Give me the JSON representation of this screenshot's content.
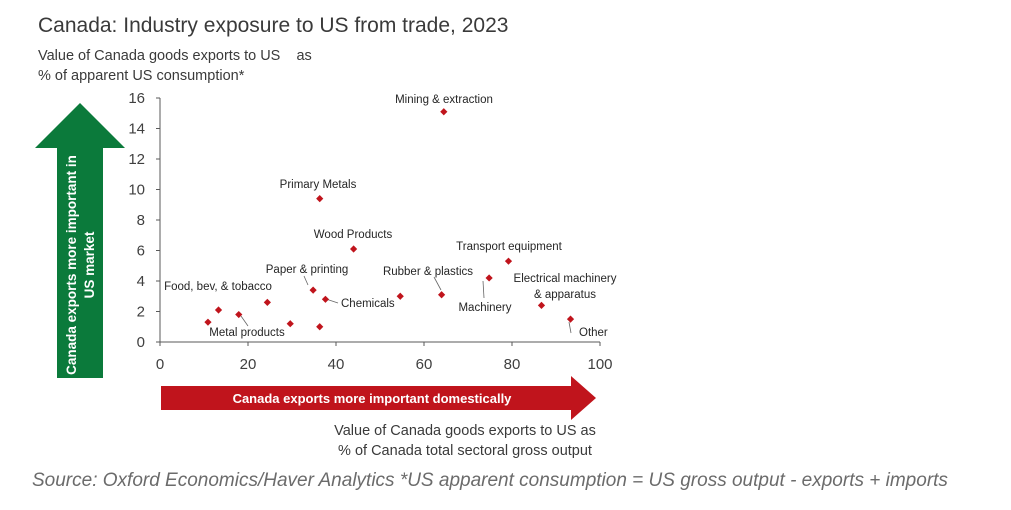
{
  "title": "Canada: Industry exposure to US from trade, 2023",
  "ylabel_line1": "Value of Canada goods exports to US    as",
  "ylabel_line2": "% of apparent US consumption*",
  "xlabel_line1": "Value of Canada goods exports to US as",
  "xlabel_line2": "% of Canada total sectoral gross output",
  "source": "Source: Oxford Economics/Haver Analytics *US apparent consumption = US gross output - exports + imports",
  "arrows": {
    "vertical_text_line1": "Canada exports more important in",
    "vertical_text_line2": "US market",
    "horizontal_text": "Canada exports more important domestically",
    "vertical_color": "#0b7a3b",
    "horizontal_color": "#c0141c"
  },
  "marker_color": "#c0141c",
  "chart_data": {
    "type": "scatter",
    "xlim": [
      0,
      100
    ],
    "ylim": [
      0,
      16
    ],
    "xticks": [
      0,
      20,
      40,
      60,
      80,
      100
    ],
    "yticks": [
      0,
      2,
      4,
      6,
      8,
      10,
      12,
      14,
      16
    ],
    "grid": false,
    "points": [
      {
        "label": "Mining & extraction",
        "x": 64.5,
        "y": 15.1
      },
      {
        "label": "Primary Metals",
        "x": 36.3,
        "y": 9.4
      },
      {
        "label": "Wood Products",
        "x": 44.0,
        "y": 6.1
      },
      {
        "label": "Transport equipment",
        "x": 79.2,
        "y": 5.3
      },
      {
        "label": "Paper & printing",
        "x": 34.8,
        "y": 3.4
      },
      {
        "label": "Rubber & plastics",
        "x": 64.0,
        "y": 3.1
      },
      {
        "label": "Food, bev, & tobacco",
        "x": 24.4,
        "y": 2.6
      },
      {
        "label": "Chemicals",
        "x": 37.6,
        "y": 2.8
      },
      {
        "label": "Machinery",
        "x": 74.8,
        "y": 4.2
      },
      {
        "label": "Electrical machinery & apparatus",
        "x": 86.7,
        "y": 2.4
      },
      {
        "label": "Metal products",
        "x": 17.9,
        "y": 1.8
      },
      {
        "label": "Other",
        "x": 93.3,
        "y": 1.5
      },
      {
        "label": "",
        "x": 54.6,
        "y": 3.0
      },
      {
        "label": "",
        "x": 13.3,
        "y": 2.1
      },
      {
        "label": "",
        "x": 10.9,
        "y": 1.3
      },
      {
        "label": "",
        "x": 29.6,
        "y": 1.2
      },
      {
        "label": "",
        "x": 36.3,
        "y": 1.0
      }
    ]
  }
}
